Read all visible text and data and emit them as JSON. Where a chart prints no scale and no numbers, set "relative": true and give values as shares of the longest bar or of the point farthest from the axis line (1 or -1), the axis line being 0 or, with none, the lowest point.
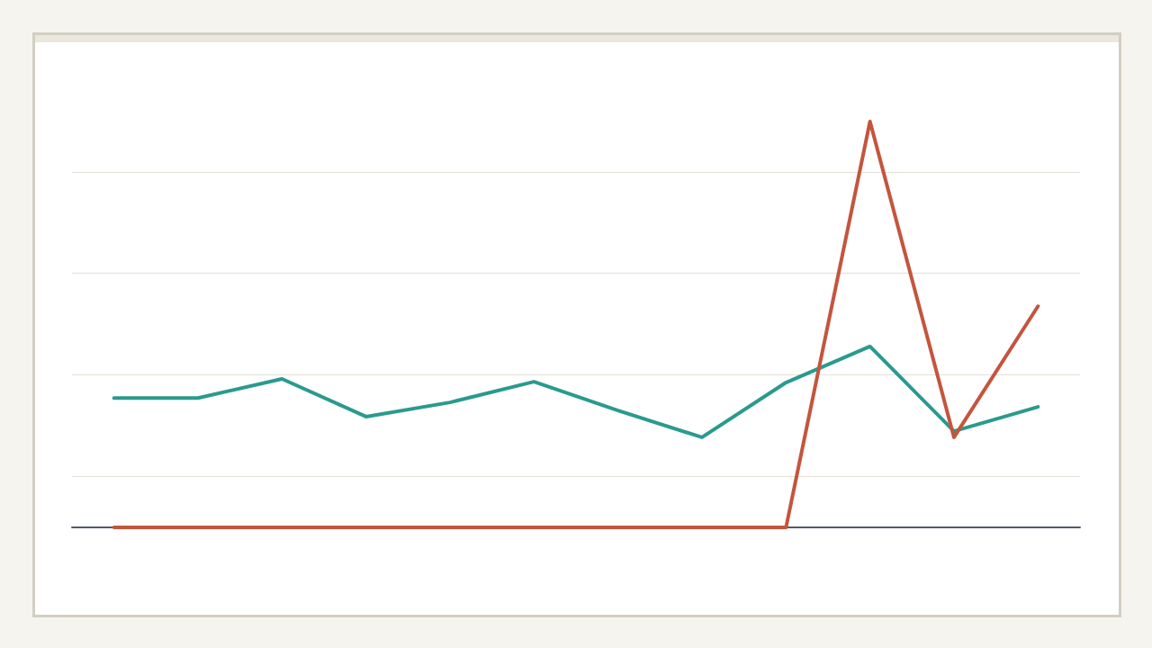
{
  "chart_data": {
    "type": "line",
    "relative": true,
    "categories": [
      null,
      null,
      null,
      null,
      null,
      null,
      null,
      null,
      null,
      null,
      null,
      null
    ],
    "series": [
      {
        "color": "#2a9a8e",
        "values": [
          0.319,
          0.319,
          0.366,
          0.273,
          0.308,
          0.359,
          0.288,
          0.222,
          0.357,
          0.446,
          0.237,
          0.297
        ]
      },
      {
        "color": "#c4553d",
        "values": [
          0,
          0,
          0,
          0,
          0,
          0,
          0,
          0,
          0,
          1,
          0.222,
          0.545
        ]
      }
    ],
    "grid": "y",
    "marker": "none"
  }
}
